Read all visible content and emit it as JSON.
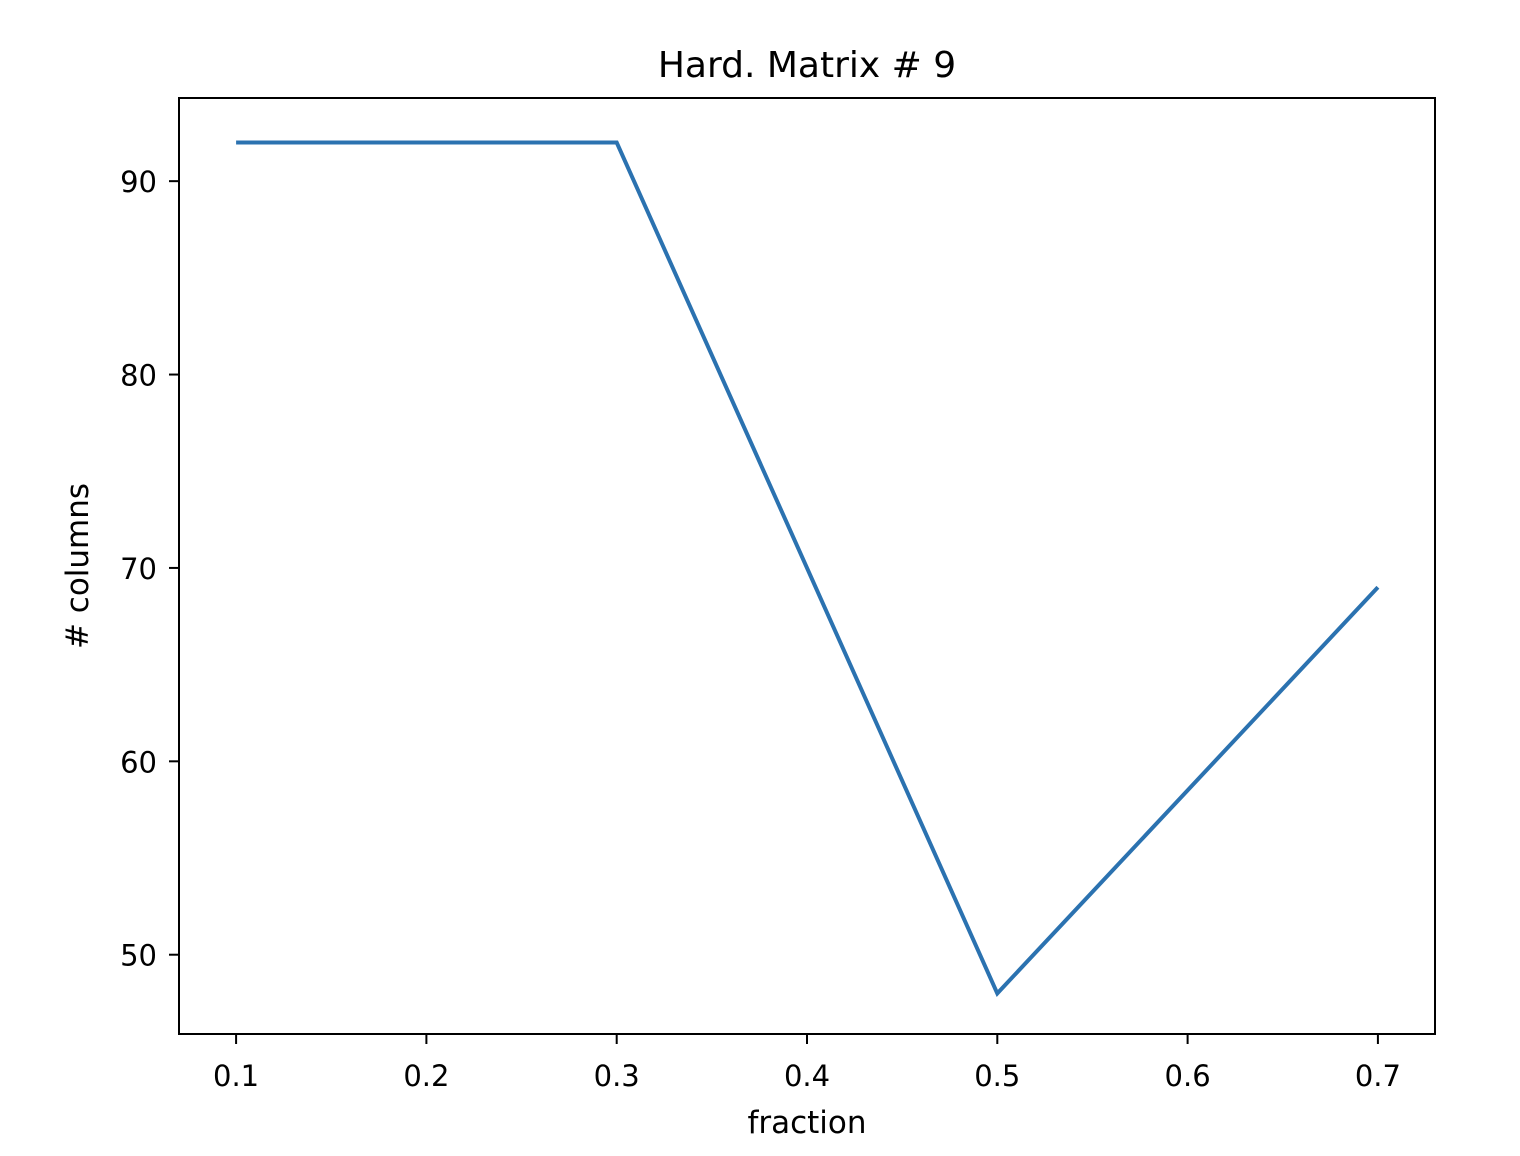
{
  "chart_data": {
    "type": "line",
    "title": "Hard. Matrix # 9",
    "xlabel": "fraction",
    "ylabel": "# columns",
    "xlim": [
      0.07,
      0.73
    ],
    "ylim": [
      45.9,
      94.3
    ],
    "xticks": [
      0.1,
      0.2,
      0.3,
      0.4,
      0.5,
      0.6,
      0.7
    ],
    "xtick_labels": [
      "0.1",
      "0.2",
      "0.3",
      "0.4",
      "0.5",
      "0.6",
      "0.7"
    ],
    "yticks": [
      50,
      60,
      70,
      80,
      90
    ],
    "ytick_labels": [
      "50",
      "60",
      "70",
      "80",
      "90"
    ],
    "grid": false,
    "series": [
      {
        "color": "#2b72b0",
        "x": [
          0.1,
          0.3,
          0.5,
          0.7
        ],
        "y": [
          92,
          92,
          48,
          69
        ]
      }
    ]
  }
}
